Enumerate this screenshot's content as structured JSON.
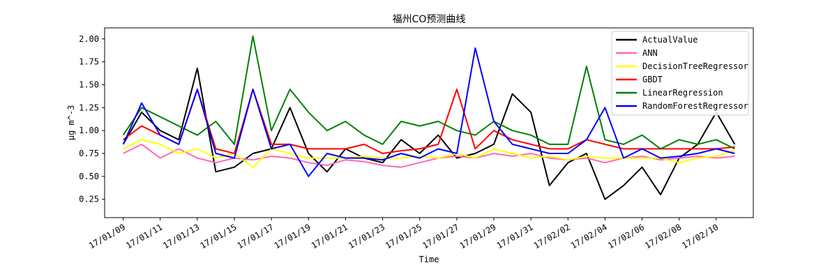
{
  "chart_data": {
    "type": "line",
    "title": "福州CO预测曲线",
    "xlabel": "Time",
    "ylabel": "μg m^-3",
    "x_range": [
      "17/01/08",
      "17/02/12"
    ],
    "ylim": [
      0.05,
      2.12
    ],
    "x_ticks": [
      "17/01/09",
      "17/01/11",
      "17/01/13",
      "17/01/15",
      "17/01/17",
      "17/01/19",
      "17/01/21",
      "17/01/23",
      "17/01/25",
      "17/01/27",
      "17/01/29",
      "17/01/31",
      "17/02/02",
      "17/02/04",
      "17/02/06",
      "17/02/08",
      "17/02/10"
    ],
    "y_ticks": [
      "0.25",
      "0.50",
      "0.75",
      "1.00",
      "1.25",
      "1.50",
      "1.75",
      "2.00"
    ],
    "legend_position": "top-right",
    "grid": false,
    "x": [
      "17/01/09",
      "17/01/10",
      "17/01/11",
      "17/01/12",
      "17/01/13",
      "17/01/14",
      "17/01/15",
      "17/01/16",
      "17/01/17",
      "17/01/18",
      "17/01/19",
      "17/01/20",
      "17/01/21",
      "17/01/22",
      "17/01/23",
      "17/01/24",
      "17/01/25",
      "17/01/26",
      "17/01/27",
      "17/01/28",
      "17/01/29",
      "17/01/30",
      "17/01/31",
      "17/02/01",
      "17/02/02",
      "17/02/03",
      "17/02/04",
      "17/02/05",
      "17/02/06",
      "17/02/07",
      "17/02/08",
      "17/02/09",
      "17/02/10",
      "17/02/11"
    ],
    "series": [
      {
        "name": "ActualValue",
        "color": "#000000",
        "values": [
          0.85,
          1.2,
          1.0,
          0.9,
          1.68,
          0.55,
          0.6,
          0.75,
          0.8,
          1.25,
          0.75,
          0.55,
          0.8,
          0.7,
          0.65,
          0.9,
          0.75,
          0.95,
          0.7,
          0.75,
          0.85,
          1.4,
          1.2,
          0.4,
          0.65,
          0.75,
          0.25,
          0.4,
          0.6,
          0.3,
          0.7,
          0.85,
          1.2,
          0.85
        ]
      },
      {
        "name": "ANN",
        "color": "#ff69b4",
        "values": [
          0.75,
          0.85,
          0.7,
          0.8,
          0.7,
          0.65,
          0.7,
          0.68,
          0.72,
          0.7,
          0.65,
          0.62,
          0.68,
          0.66,
          0.62,
          0.6,
          0.65,
          0.7,
          0.72,
          0.7,
          0.75,
          0.72,
          0.75,
          0.7,
          0.68,
          0.7,
          0.65,
          0.7,
          0.72,
          0.68,
          0.7,
          0.72,
          0.7,
          0.72
        ]
      },
      {
        "name": "DecisionTreeRegressor",
        "color": "#ffff00",
        "values": [
          0.8,
          0.9,
          0.85,
          0.75,
          0.8,
          0.7,
          0.75,
          0.6,
          0.8,
          0.75,
          0.7,
          0.7,
          0.7,
          0.72,
          0.7,
          0.7,
          0.72,
          0.7,
          0.75,
          0.7,
          0.8,
          0.75,
          0.7,
          0.72,
          0.68,
          0.72,
          0.7,
          0.7,
          0.7,
          0.7,
          0.65,
          0.7,
          0.72,
          0.78
        ]
      },
      {
        "name": "GBDT",
        "color": "#ff0000",
        "values": [
          0.9,
          1.05,
          0.95,
          0.85,
          1.45,
          0.8,
          0.75,
          1.45,
          0.85,
          0.85,
          0.8,
          0.8,
          0.8,
          0.85,
          0.75,
          0.78,
          0.8,
          0.85,
          1.45,
          0.8,
          1.0,
          0.9,
          0.85,
          0.8,
          0.8,
          0.9,
          0.85,
          0.8,
          0.8,
          0.8,
          0.8,
          0.8,
          0.8,
          0.82
        ]
      },
      {
        "name": "LinearRegression",
        "color": "#008000",
        "values": [
          0.95,
          1.25,
          1.15,
          1.05,
          0.95,
          1.1,
          0.85,
          2.03,
          1.0,
          1.45,
          1.2,
          1.0,
          1.1,
          0.95,
          0.85,
          1.1,
          1.05,
          1.1,
          1.0,
          0.95,
          1.1,
          1.0,
          0.95,
          0.85,
          0.85,
          1.7,
          0.9,
          0.85,
          0.95,
          0.8,
          0.9,
          0.85,
          0.9,
          0.8
        ]
      },
      {
        "name": "RandomForestRegressor",
        "color": "#0000ff",
        "values": [
          0.85,
          1.3,
          0.95,
          0.85,
          1.45,
          0.75,
          0.7,
          1.45,
          0.8,
          0.85,
          0.5,
          0.75,
          0.7,
          0.7,
          0.68,
          0.75,
          0.7,
          0.8,
          0.75,
          1.9,
          1.1,
          0.85,
          0.8,
          0.75,
          0.75,
          0.9,
          1.25,
          0.7,
          0.8,
          0.7,
          0.72,
          0.75,
          0.8,
          0.75
        ]
      }
    ]
  }
}
